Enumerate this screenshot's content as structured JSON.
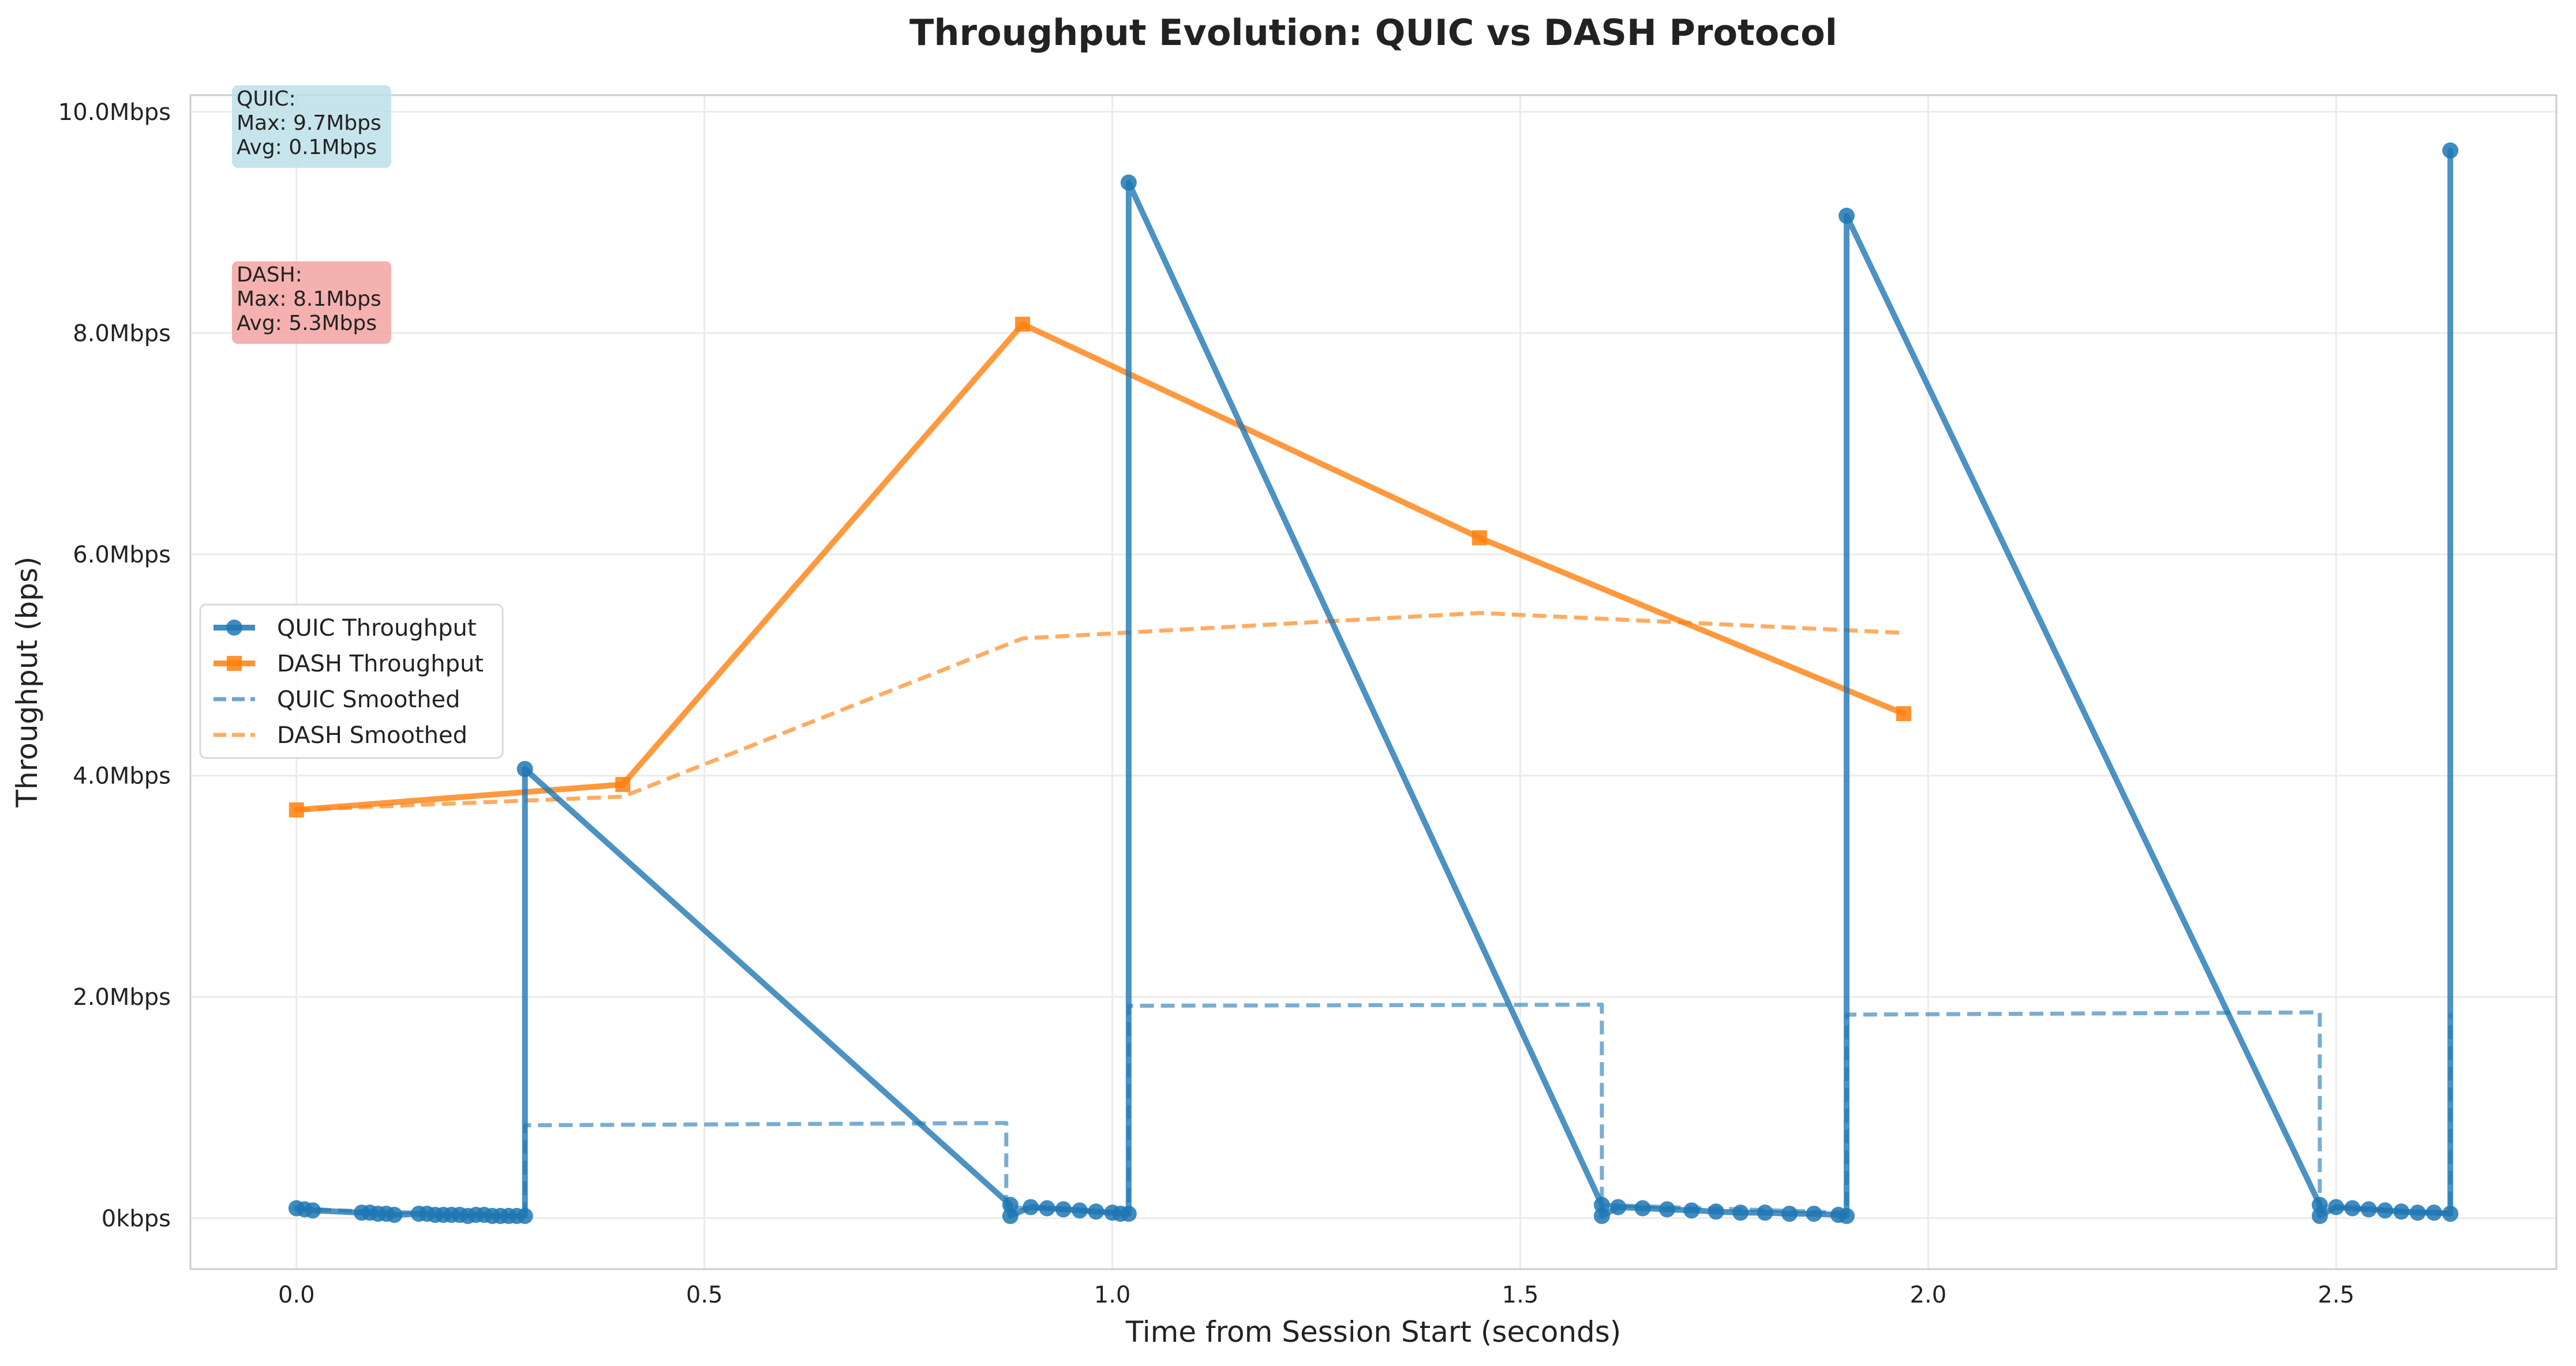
{
  "chart_data": {
    "type": "line",
    "title": "Throughput Evolution: QUIC vs DASH Protocol",
    "xlabel": "Time from Session Start (seconds)",
    "ylabel": "Throughput (bps)",
    "xlim": [
      -0.13,
      2.77
    ],
    "ylim": [
      -0.46,
      10.15
    ],
    "x_ticks": [
      {
        "value": 0.0,
        "label": "0.0"
      },
      {
        "value": 0.5,
        "label": "0.5"
      },
      {
        "value": 1.0,
        "label": "1.0"
      },
      {
        "value": 1.5,
        "label": "1.5"
      },
      {
        "value": 2.0,
        "label": "2.0"
      },
      {
        "value": 2.5,
        "label": "2.5"
      }
    ],
    "y_ticks": [
      {
        "value": 0,
        "label": "0kbps"
      },
      {
        "value": 2,
        "label": "2.0Mbps"
      },
      {
        "value": 4,
        "label": "4.0Mbps"
      },
      {
        "value": 6,
        "label": "6.0Mbps"
      },
      {
        "value": 8,
        "label": "8.0Mbps"
      },
      {
        "value": 10,
        "label": "10.0Mbps"
      }
    ],
    "grid": true,
    "legend_position": "center-left",
    "legend": [
      {
        "label": "QUIC Throughput",
        "color": "#1f77b4",
        "style": "solid",
        "marker": "circle"
      },
      {
        "label": "DASH Throughput",
        "color": "#ff7f0e",
        "style": "solid",
        "marker": "square"
      },
      {
        "label": "QUIC Smoothed",
        "color": "#1f77b4",
        "style": "dashed",
        "marker": "none"
      },
      {
        "label": "DASH Smoothed",
        "color": "#ff7f0e",
        "style": "dashed",
        "marker": "none"
      }
    ],
    "series": [
      {
        "name": "QUIC Throughput",
        "unit": "Mbps",
        "color": "#1f77b4",
        "marker": "circle",
        "x": [
          0.0,
          0.01,
          0.02,
          0.08,
          0.09,
          0.1,
          0.11,
          0.12,
          0.15,
          0.16,
          0.17,
          0.18,
          0.19,
          0.2,
          0.21,
          0.22,
          0.23,
          0.24,
          0.25,
          0.26,
          0.27,
          0.28,
          0.28,
          0.875,
          0.875,
          0.9,
          0.92,
          0.94,
          0.96,
          0.98,
          1.0,
          1.01,
          1.02,
          1.02,
          1.6,
          1.6,
          1.62,
          1.65,
          1.68,
          1.71,
          1.74,
          1.77,
          1.8,
          1.83,
          1.86,
          1.89,
          1.9,
          1.9,
          2.48,
          2.48,
          2.5,
          2.52,
          2.54,
          2.56,
          2.58,
          2.6,
          2.62,
          2.64,
          2.64
        ],
        "y": [
          0.09,
          0.08,
          0.07,
          0.05,
          0.05,
          0.04,
          0.04,
          0.03,
          0.04,
          0.04,
          0.03,
          0.03,
          0.03,
          0.03,
          0.02,
          0.03,
          0.03,
          0.02,
          0.02,
          0.02,
          0.02,
          0.02,
          4.06,
          0.12,
          0.02,
          0.1,
          0.09,
          0.08,
          0.07,
          0.06,
          0.05,
          0.04,
          0.04,
          9.36,
          0.12,
          0.02,
          0.1,
          0.09,
          0.08,
          0.07,
          0.06,
          0.05,
          0.05,
          0.04,
          0.04,
          0.03,
          0.02,
          9.06,
          0.12,
          0.02,
          0.1,
          0.09,
          0.08,
          0.07,
          0.06,
          0.05,
          0.05,
          0.04,
          9.65
        ]
      },
      {
        "name": "DASH Throughput",
        "unit": "Mbps",
        "color": "#ff7f0e",
        "marker": "square",
        "x": [
          0.0,
          0.4,
          0.89,
          1.45,
          1.97
        ],
        "y": [
          3.69,
          3.92,
          8.08,
          6.15,
          4.56
        ]
      },
      {
        "name": "QUIC Smoothed",
        "unit": "Mbps",
        "color": "#1f77b4",
        "marker": "none",
        "dashed": true,
        "x": [
          0.0,
          0.05,
          0.1,
          0.15,
          0.2,
          0.28,
          0.28,
          0.87,
          0.87,
          1.02,
          1.02,
          1.6,
          1.6,
          1.9,
          1.9,
          2.48,
          2.48,
          2.64,
          2.64
        ],
        "y": [
          0.09,
          0.07,
          0.06,
          0.05,
          0.03,
          0.02,
          0.84,
          0.86,
          0.1,
          0.05,
          1.92,
          1.93,
          0.12,
          0.05,
          1.84,
          1.86,
          0.1,
          0.05,
          1.85
        ]
      },
      {
        "name": "DASH Smoothed",
        "unit": "Mbps",
        "color": "#ff7f0e",
        "marker": "none",
        "dashed": true,
        "x": [
          0.0,
          0.4,
          0.89,
          1.45,
          1.97
        ],
        "y": [
          3.69,
          3.81,
          5.24,
          5.47,
          5.29
        ]
      }
    ],
    "annotations": [
      {
        "name": "quic-stats",
        "lines": [
          "QUIC:",
          "Max: 9.7Mbps",
          "Avg: 0.1Mbps"
        ],
        "bg": "#bcdfe8"
      },
      {
        "name": "dash-stats",
        "lines": [
          "DASH:",
          "Max: 8.1Mbps",
          "Avg: 5.3Mbps"
        ],
        "bg": "#f2a3a1"
      }
    ]
  }
}
